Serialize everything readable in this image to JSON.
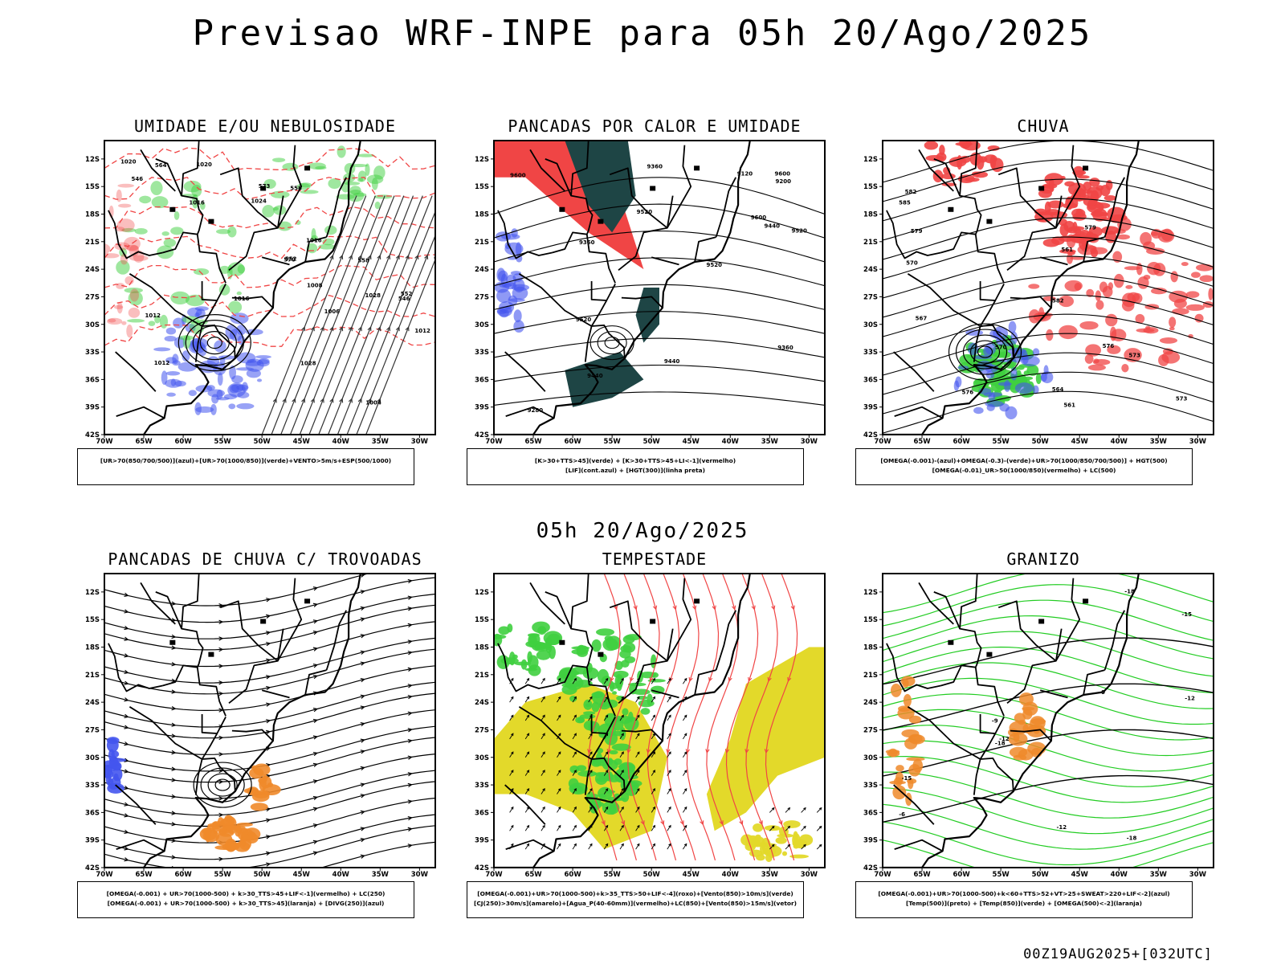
{
  "title": "Previsao WRF-INPE  para 05h 20/Ago/2025",
  "subtitle": "05h 20/Ago/2025",
  "footer": "00Z19AUG2025+[032UTC]",
  "axes": {
    "lat_ticks": [
      "12S",
      "15S",
      "18S",
      "21S",
      "24S",
      "27S",
      "30S",
      "33S",
      "36S",
      "39S",
      "42S"
    ],
    "lon_ticks": [
      "70W",
      "65W",
      "60W",
      "55W",
      "50W",
      "45W",
      "40W",
      "35W",
      "30W"
    ]
  },
  "colors": {
    "blue": "#4455ee",
    "green": "#22cc22",
    "red": "#f04545",
    "orange": "#ef8a2a",
    "yellow": "#e3d92a",
    "darkteal": "#1e4545",
    "lightgreen": "#3fcf3f"
  },
  "panels": [
    {
      "title": "UMIDADE E/OU NEBULOSIDADE",
      "caption": [
        "[UR>70(850/700/500)](azul)+[UR>70(1000/850)](verde)+VENTO>5m/s+ESP(500/1000)"
      ],
      "contour_labels": [
        "1020",
        "1016",
        "1020",
        "1012",
        "1008",
        "1004",
        "1012",
        "1016",
        "1024",
        "1028",
        "1028",
        "570",
        "573",
        "564",
        "558",
        "552",
        "546",
        "546",
        "552",
        "558",
        "1006",
        "1016",
        "1012"
      ]
    },
    {
      "title": "PANCADAS POR CALOR E UMIDADE",
      "caption": [
        "[K>30+TTS>45](verde) + [K>30+TTS>45+LI<-1](vermelho)",
        "[LIF](cont.azul) + [HGT(300)](linha preta)"
      ],
      "contour_labels": [
        "9600",
        "9520",
        "9440",
        "9360",
        "9280",
        "9200",
        "9120",
        "9520",
        "9600",
        "9600",
        "9520",
        "9440",
        "9360",
        "9440",
        "9360",
        "9520"
      ]
    },
    {
      "title": "CHUVA",
      "caption": [
        "[OMEGA(-0.001)-(azul)+OMEGA(-0.3)-(verde)+UR>70(1000/850/700/500)] + HGT(500)",
        "[OMEGA(-0.01)_UR>50(1000/850)(vermelho) + LC(500)"
      ],
      "contour_labels": [
        "585",
        "582",
        "579",
        "576",
        "573",
        "570",
        "567",
        "564",
        "561",
        "582",
        "579",
        "576",
        "573",
        "570",
        "561"
      ]
    },
    {
      "title": "PANCADAS DE CHUVA C/ TROVOADAS",
      "caption": [
        "[OMEGA(-0.001) + UR>70(1000-500) + k>30_TTS>45+LIF<-1](vermelho) + LC(250)",
        "[OMEGA(-0.001) + UR>70(1000-500) + k>30_TTS>45](laranja) + [DIVG(250)](azul)"
      ],
      "contour_labels": []
    },
    {
      "title": "TEMPESTADE",
      "caption": [
        "[OMEGA(-0.001)+UR>70(1000-500)+k>35_TTS>50+LIF<-4](roxo)+[Vento(850)>10m/s](verde)",
        "[CJ(250)>30m/s](amarelo)+[Agua_P(40-60mm)](vermelho)+LC(850)+[Vento(850)>15m/s](vetor)"
      ],
      "contour_labels": []
    },
    {
      "title": "GRANIZO",
      "caption": [
        "[OMEGA(-0.001)+UR>70(1000-500)+k<60+TTS>52+VT>25+SWEAT>220+LIF<-2](azul)",
        "[Temp(500)](preto) + [Temp(850)](verde) + [OMEGA(500)<-2](laranja)"
      ],
      "contour_labels": [
        "-6",
        "-9",
        "-12",
        "-12",
        "-15",
        "-18",
        "-18",
        "-15",
        "-12",
        "-18",
        "-9"
      ]
    }
  ]
}
